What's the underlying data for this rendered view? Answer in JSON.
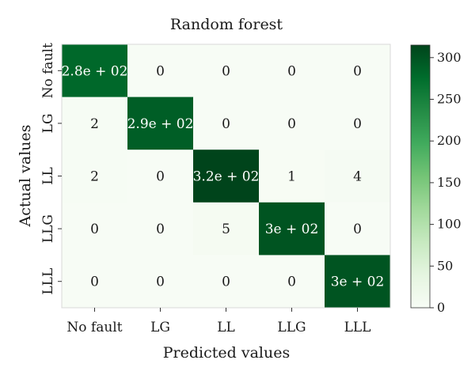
{
  "chart_data": {
    "type": "heatmap",
    "title": "Random forest",
    "xlabel": "Predicted values",
    "ylabel": "Actual values",
    "x_categories": [
      "No fault",
      "LG",
      "LL",
      "LLG",
      "LLL"
    ],
    "y_categories": [
      "No fault",
      "LG",
      "LL",
      "LLG",
      "LLL"
    ],
    "values": [
      [
        280,
        0,
        0,
        0,
        0
      ],
      [
        2,
        290,
        0,
        0,
        0
      ],
      [
        2,
        0,
        320,
        1,
        4
      ],
      [
        0,
        0,
        5,
        300,
        0
      ],
      [
        0,
        0,
        0,
        0,
        300
      ]
    ],
    "cell_labels": [
      [
        "2.8e + 02",
        "0",
        "0",
        "0",
        "0"
      ],
      [
        "2",
        "2.9e + 02",
        "0",
        "0",
        "0"
      ],
      [
        "2",
        "0",
        "3.2e + 02",
        "1",
        "4"
      ],
      [
        "0",
        "0",
        "5",
        "3e + 02",
        "0"
      ],
      [
        "0",
        "0",
        "0",
        "0",
        "3e + 02"
      ]
    ],
    "colorbar": {
      "range": [
        0,
        315
      ],
      "ticks": [
        0,
        50,
        100,
        150,
        200,
        250,
        300
      ],
      "colormap": "Greens",
      "low_color": "#f7fcf5",
      "high_color": "#00441b"
    }
  }
}
